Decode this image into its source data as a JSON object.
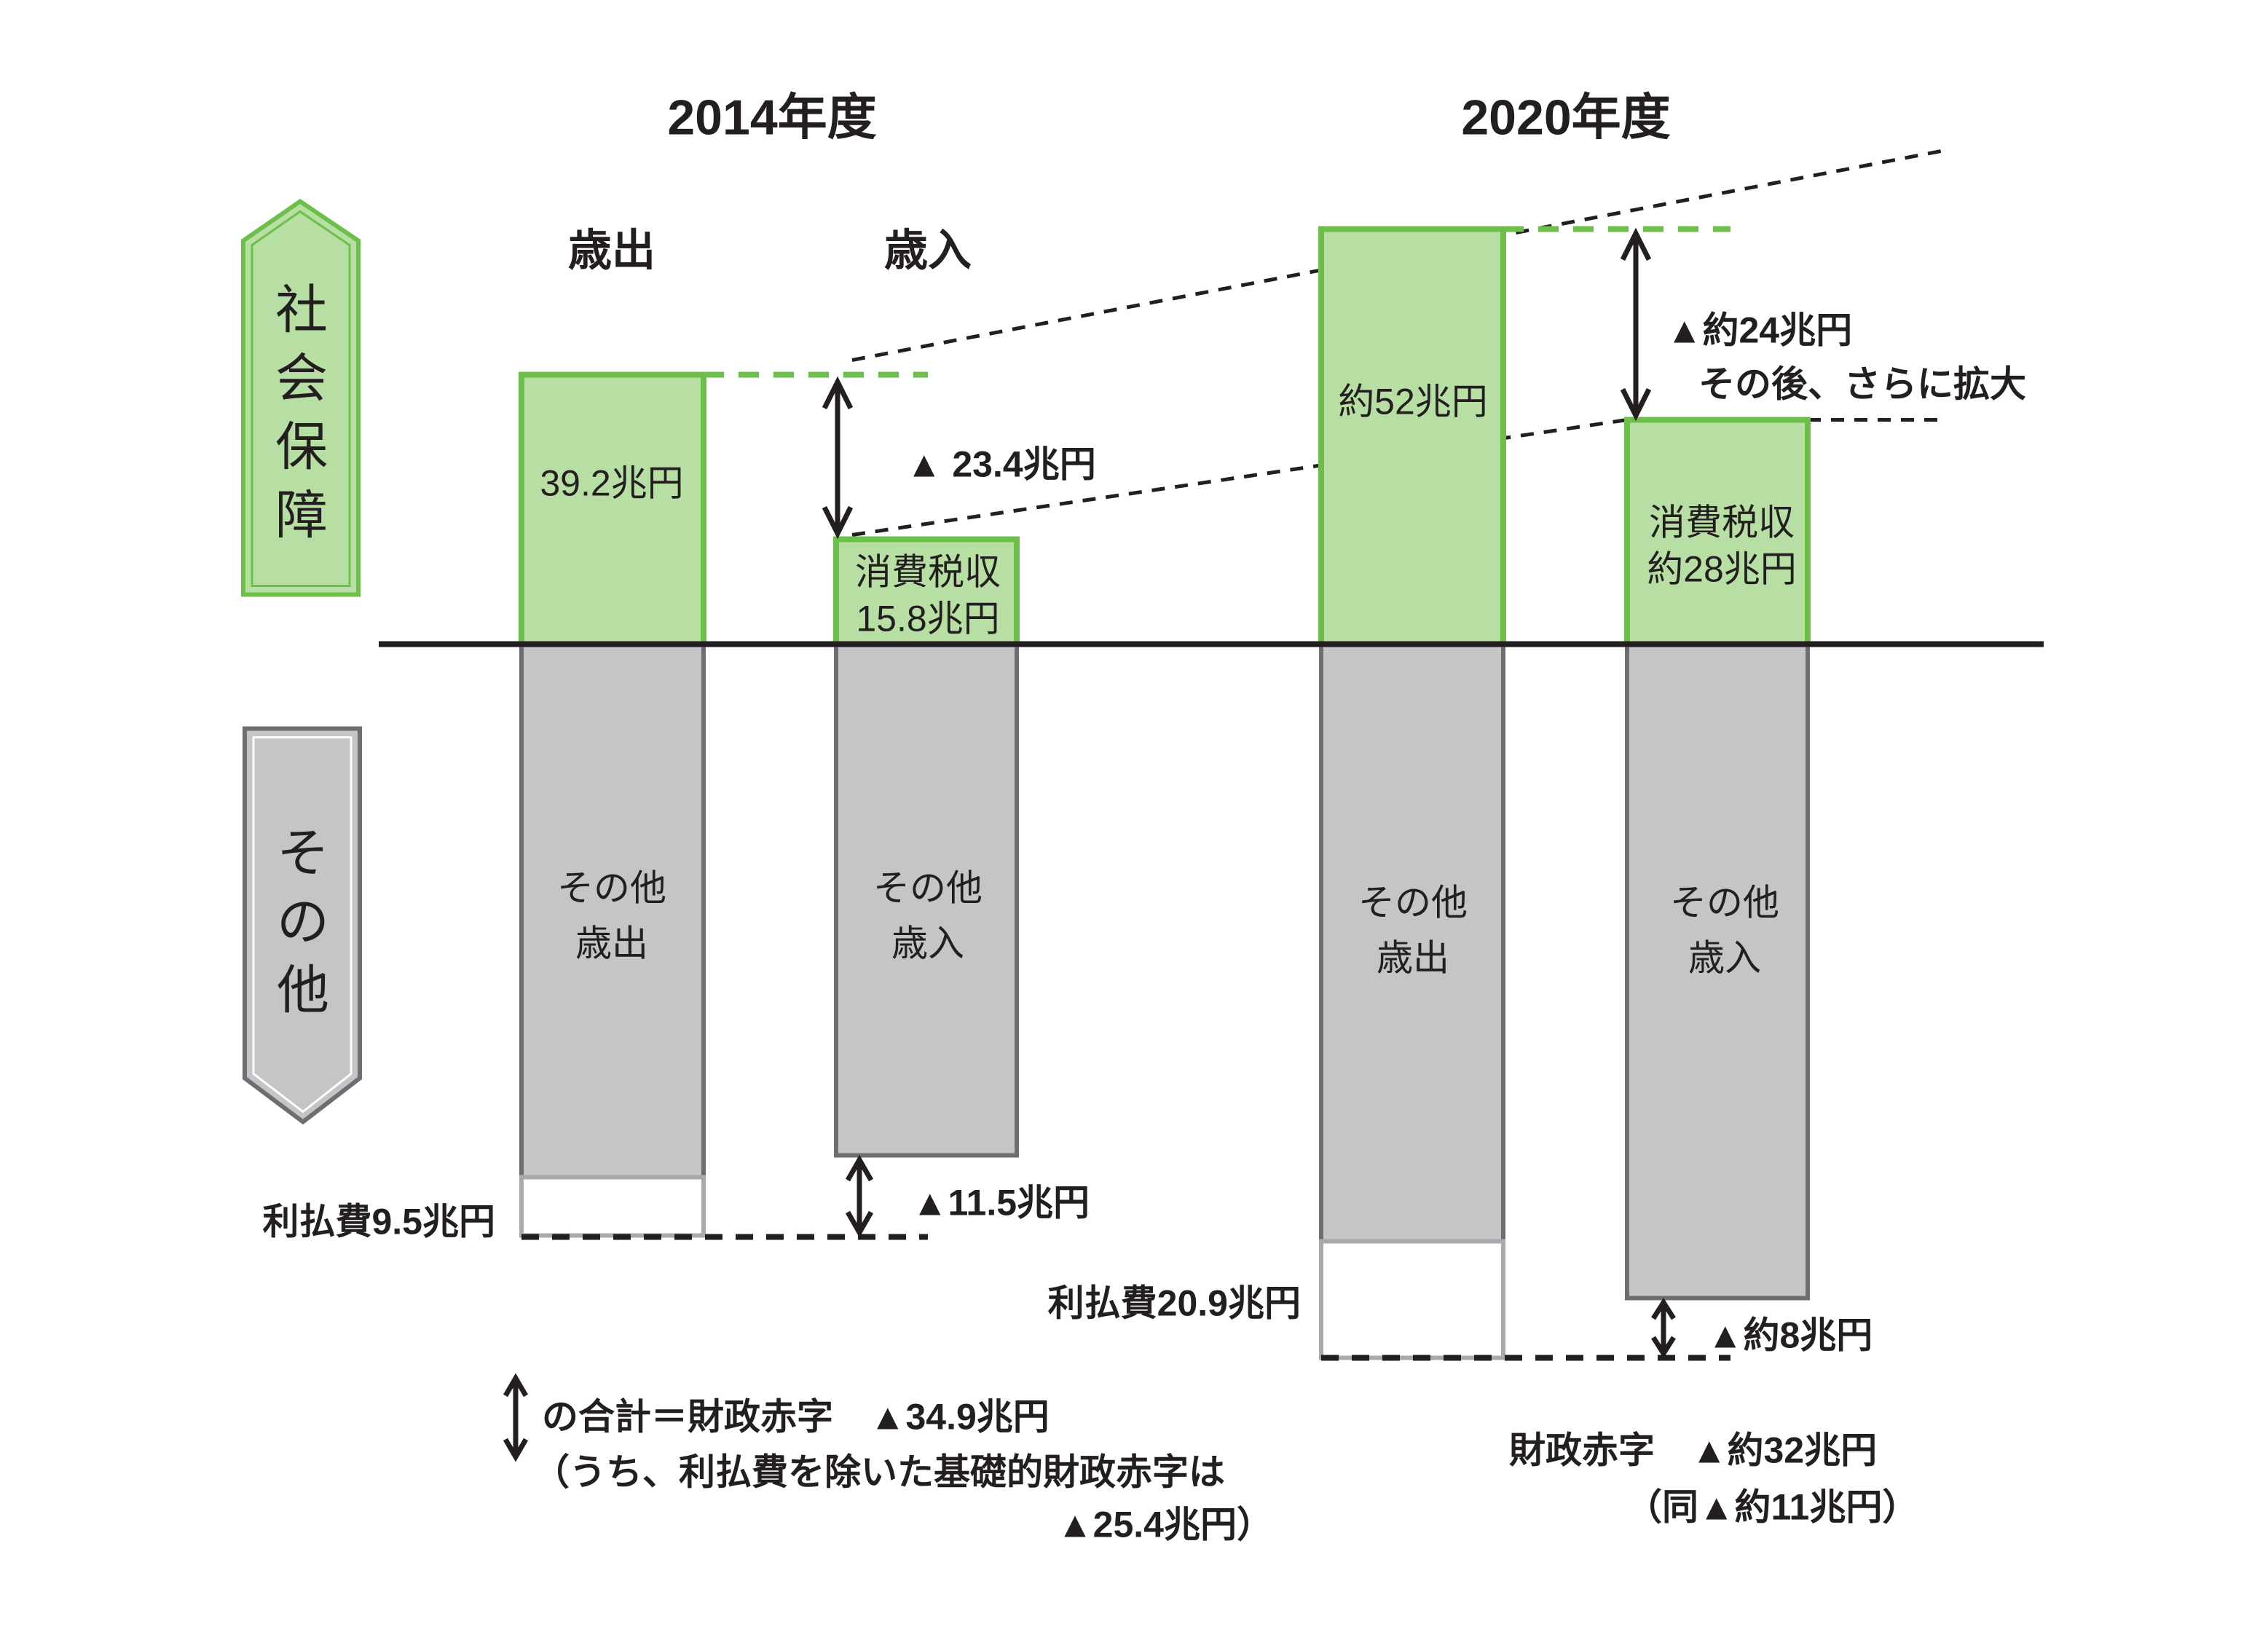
{
  "headers": {
    "year_2014": "2014年度",
    "year_2020": "2020年度",
    "expenditure": "歳出",
    "revenue": "歳入"
  },
  "side_labels": {
    "social_security": [
      "社",
      "会",
      "保",
      "障"
    ],
    "other": [
      "そ",
      "の",
      "他"
    ]
  },
  "bars_2014": {
    "expenditure_social": "39.2兆円",
    "revenue_tax": [
      "消費税収",
      "15.8兆円"
    ],
    "expenditure_other": [
      "その他",
      "歳出"
    ],
    "revenue_other": [
      "その他",
      "歳入"
    ],
    "interest": "利払費9.5兆円",
    "gap_social": "▲ 23.4兆円",
    "gap_other": "▲11.5兆円"
  },
  "bars_2020": {
    "expenditure_social": "約52兆円",
    "revenue_tax": [
      "消費税収",
      "約28兆円"
    ],
    "expenditure_other": [
      "その他",
      "歳出"
    ],
    "revenue_other": [
      "その他",
      "歳入"
    ],
    "interest": "利払費20.9兆円",
    "gap_social": "▲約24兆円",
    "gap_social_note": "その後、さらに拡大",
    "gap_other": "▲約8兆円"
  },
  "notes_2014": [
    "の合計＝財政赤字　▲34.9兆円",
    "（うち、利払費を除いた基礎的財政赤字は",
    "▲25.4兆円）"
  ],
  "notes_2020": [
    "財政赤字　▲約32兆円",
    "（同▲約11兆円）"
  ],
  "colors": {
    "green_fill": "#b8dfa3",
    "green_stroke": "#6cc04a",
    "gray_fill": "#c4c5c7",
    "gray_stroke": "#6d6e71"
  }
}
